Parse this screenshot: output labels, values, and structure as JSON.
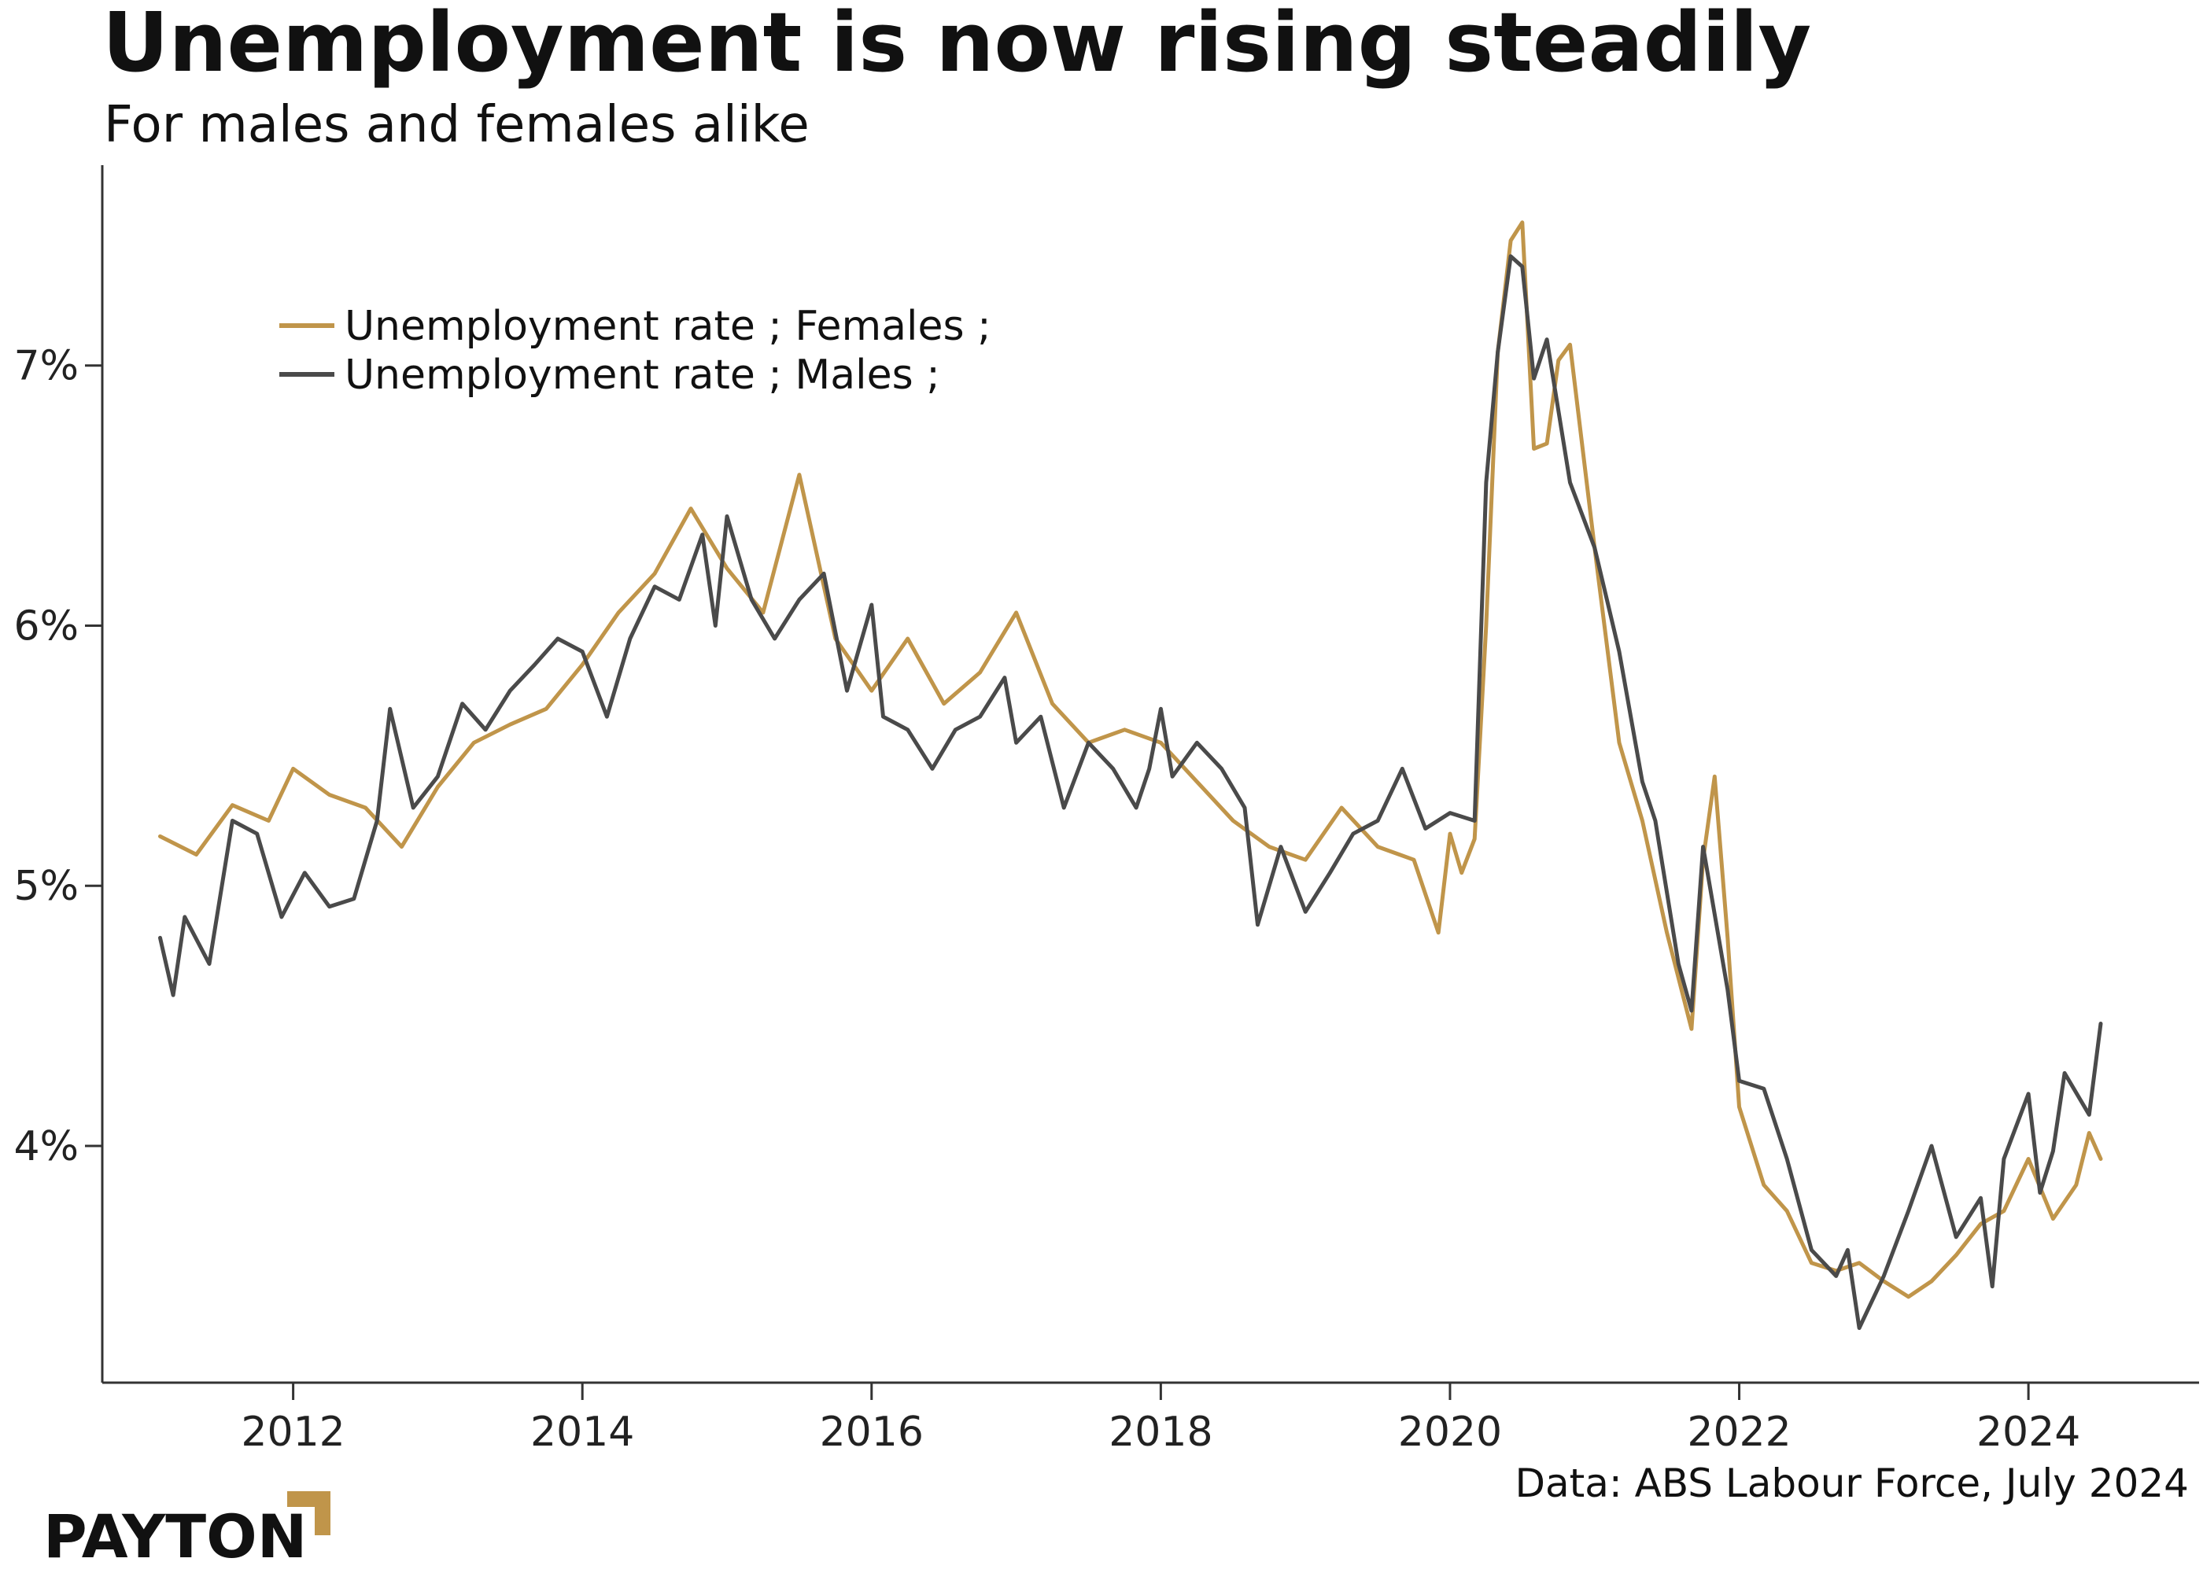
{
  "title": "Unemployment is now rising steadily",
  "subtitle": "For males and females alike",
  "source": "Data: ABS Labour Force, July 2024",
  "logo": "PAYTON",
  "colors": {
    "females": "#c0954a",
    "males": "#4a4a4a",
    "axis": "#333333",
    "logo_accent": "#c0954a"
  },
  "chart_data": {
    "type": "line",
    "xlim": [
      2010.68,
      2025.18
    ],
    "ylim": [
      3.09,
      7.77
    ],
    "x_ticks": [
      2012,
      2014,
      2016,
      2018,
      2020,
      2022,
      2024
    ],
    "x_tick_labels": [
      "2012",
      "2014",
      "2016",
      "2018",
      "2020",
      "2022",
      "2024"
    ],
    "y_ticks": [
      4,
      5,
      6,
      7
    ],
    "y_tick_labels": [
      "4%",
      "5%",
      "6%",
      "7%"
    ],
    "legend": {
      "placement": "top-left"
    },
    "grid": false,
    "series": [
      {
        "name": "Unemployment rate ; Females ;",
        "key": "females",
        "points": [
          [
            2011.08,
            5.19
          ],
          [
            2011.33,
            5.12
          ],
          [
            2011.58,
            5.31
          ],
          [
            2011.83,
            5.25
          ],
          [
            2012.0,
            5.45
          ],
          [
            2012.25,
            5.35
          ],
          [
            2012.5,
            5.3
          ],
          [
            2012.75,
            5.15
          ],
          [
            2013.0,
            5.38
          ],
          [
            2013.25,
            5.55
          ],
          [
            2013.5,
            5.62
          ],
          [
            2013.75,
            5.68
          ],
          [
            2014.0,
            5.85
          ],
          [
            2014.25,
            6.05
          ],
          [
            2014.5,
            6.2
          ],
          [
            2014.75,
            6.45
          ],
          [
            2015.0,
            6.22
          ],
          [
            2015.25,
            6.05
          ],
          [
            2015.5,
            6.58
          ],
          [
            2015.75,
            5.95
          ],
          [
            2016.0,
            5.75
          ],
          [
            2016.25,
            5.95
          ],
          [
            2016.5,
            5.7
          ],
          [
            2016.75,
            5.82
          ],
          [
            2017.0,
            6.05
          ],
          [
            2017.25,
            5.7
          ],
          [
            2017.5,
            5.55
          ],
          [
            2017.75,
            5.6
          ],
          [
            2018.0,
            5.55
          ],
          [
            2018.25,
            5.4
          ],
          [
            2018.5,
            5.25
          ],
          [
            2018.75,
            5.15
          ],
          [
            2019.0,
            5.1
          ],
          [
            2019.25,
            5.3
          ],
          [
            2019.5,
            5.15
          ],
          [
            2019.75,
            5.1
          ],
          [
            2019.92,
            4.82
          ],
          [
            2020.0,
            5.2
          ],
          [
            2020.08,
            5.05
          ],
          [
            2020.17,
            5.18
          ],
          [
            2020.25,
            6.0
          ],
          [
            2020.33,
            7.05
          ],
          [
            2020.42,
            7.48
          ],
          [
            2020.5,
            7.55
          ],
          [
            2020.58,
            6.68
          ],
          [
            2020.67,
            6.7
          ],
          [
            2020.75,
            7.02
          ],
          [
            2020.83,
            7.08
          ],
          [
            2021.0,
            6.3
          ],
          [
            2021.17,
            5.55
          ],
          [
            2021.33,
            5.25
          ],
          [
            2021.5,
            4.82
          ],
          [
            2021.67,
            4.45
          ],
          [
            2021.75,
            5.1
          ],
          [
            2021.83,
            5.42
          ],
          [
            2021.92,
            4.8
          ],
          [
            2022.0,
            4.15
          ],
          [
            2022.17,
            3.85
          ],
          [
            2022.33,
            3.75
          ],
          [
            2022.5,
            3.55
          ],
          [
            2022.67,
            3.52
          ],
          [
            2022.83,
            3.55
          ],
          [
            2023.0,
            3.48
          ],
          [
            2023.17,
            3.42
          ],
          [
            2023.33,
            3.48
          ],
          [
            2023.5,
            3.58
          ],
          [
            2023.67,
            3.7
          ],
          [
            2023.83,
            3.75
          ],
          [
            2024.0,
            3.95
          ],
          [
            2024.17,
            3.72
          ],
          [
            2024.33,
            3.85
          ],
          [
            2024.42,
            4.05
          ],
          [
            2024.5,
            3.95
          ]
        ]
      },
      {
        "name": "Unemployment rate ; Males ;",
        "key": "males",
        "points": [
          [
            2011.08,
            4.8
          ],
          [
            2011.17,
            4.58
          ],
          [
            2011.25,
            4.88
          ],
          [
            2011.42,
            4.7
          ],
          [
            2011.58,
            5.25
          ],
          [
            2011.75,
            5.2
          ],
          [
            2011.92,
            4.88
          ],
          [
            2012.08,
            5.05
          ],
          [
            2012.25,
            4.92
          ],
          [
            2012.42,
            4.95
          ],
          [
            2012.58,
            5.25
          ],
          [
            2012.67,
            5.68
          ],
          [
            2012.83,
            5.3
          ],
          [
            2013.0,
            5.42
          ],
          [
            2013.17,
            5.7
          ],
          [
            2013.33,
            5.6
          ],
          [
            2013.5,
            5.75
          ],
          [
            2013.67,
            5.85
          ],
          [
            2013.83,
            5.95
          ],
          [
            2014.0,
            5.9
          ],
          [
            2014.17,
            5.65
          ],
          [
            2014.33,
            5.95
          ],
          [
            2014.5,
            6.15
          ],
          [
            2014.67,
            6.1
          ],
          [
            2014.83,
            6.35
          ],
          [
            2014.92,
            6.0
          ],
          [
            2015.0,
            6.42
          ],
          [
            2015.17,
            6.1
          ],
          [
            2015.33,
            5.95
          ],
          [
            2015.5,
            6.1
          ],
          [
            2015.67,
            6.2
          ],
          [
            2015.83,
            5.75
          ],
          [
            2016.0,
            6.08
          ],
          [
            2016.08,
            5.65
          ],
          [
            2016.25,
            5.6
          ],
          [
            2016.42,
            5.45
          ],
          [
            2016.58,
            5.6
          ],
          [
            2016.75,
            5.65
          ],
          [
            2016.92,
            5.8
          ],
          [
            2017.0,
            5.55
          ],
          [
            2017.17,
            5.65
          ],
          [
            2017.33,
            5.3
          ],
          [
            2017.5,
            5.55
          ],
          [
            2017.67,
            5.45
          ],
          [
            2017.83,
            5.3
          ],
          [
            2017.92,
            5.45
          ],
          [
            2018.0,
            5.68
          ],
          [
            2018.08,
            5.42
          ],
          [
            2018.25,
            5.55
          ],
          [
            2018.42,
            5.45
          ],
          [
            2018.58,
            5.3
          ],
          [
            2018.67,
            4.85
          ],
          [
            2018.83,
            5.15
          ],
          [
            2019.0,
            4.9
          ],
          [
            2019.17,
            5.05
          ],
          [
            2019.33,
            5.2
          ],
          [
            2019.5,
            5.25
          ],
          [
            2019.67,
            5.45
          ],
          [
            2019.83,
            5.22
          ],
          [
            2020.0,
            5.28
          ],
          [
            2020.17,
            5.25
          ],
          [
            2020.25,
            6.55
          ],
          [
            2020.33,
            7.05
          ],
          [
            2020.42,
            7.42
          ],
          [
            2020.5,
            7.38
          ],
          [
            2020.58,
            6.95
          ],
          [
            2020.67,
            7.1
          ],
          [
            2020.83,
            6.55
          ],
          [
            2021.0,
            6.3
          ],
          [
            2021.17,
            5.9
          ],
          [
            2021.33,
            5.4
          ],
          [
            2021.42,
            5.25
          ],
          [
            2021.58,
            4.7
          ],
          [
            2021.67,
            4.52
          ],
          [
            2021.75,
            5.15
          ],
          [
            2021.92,
            4.6
          ],
          [
            2022.0,
            4.25
          ],
          [
            2022.17,
            4.22
          ],
          [
            2022.33,
            3.95
          ],
          [
            2022.5,
            3.6
          ],
          [
            2022.67,
            3.5
          ],
          [
            2022.75,
            3.6
          ],
          [
            2022.83,
            3.3
          ],
          [
            2023.0,
            3.5
          ],
          [
            2023.17,
            3.75
          ],
          [
            2023.33,
            4.0
          ],
          [
            2023.5,
            3.65
          ],
          [
            2023.67,
            3.8
          ],
          [
            2023.75,
            3.46
          ],
          [
            2023.83,
            3.95
          ],
          [
            2024.0,
            4.2
          ],
          [
            2024.08,
            3.82
          ],
          [
            2024.17,
            3.98
          ],
          [
            2024.25,
            4.28
          ],
          [
            2024.42,
            4.12
          ],
          [
            2024.5,
            4.47
          ]
        ]
      }
    ]
  }
}
